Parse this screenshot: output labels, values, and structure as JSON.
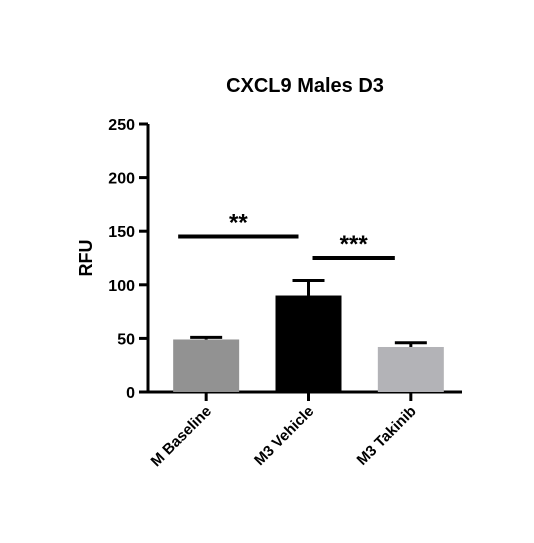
{
  "chart_data": {
    "type": "bar",
    "title": "CXCL9 Males D3",
    "xlabel": "",
    "ylabel": "RFU",
    "ylim": [
      0,
      250
    ],
    "yticks": [
      0,
      50,
      100,
      150,
      200,
      250
    ],
    "categories": [
      "M Baseline",
      "M3 Vehicle",
      "M3 Takinib"
    ],
    "values": [
      49,
      90,
      42
    ],
    "errors": [
      2,
      14,
      4
    ],
    "colors": [
      "#929292",
      "#000000",
      "#b3b3b7"
    ],
    "significance": [
      {
        "from": 0,
        "to": 1,
        "label": "**",
        "y": 145
      },
      {
        "from": 1,
        "to": 2,
        "label": "***",
        "y": 125
      }
    ],
    "grid": false,
    "legend": "none"
  }
}
